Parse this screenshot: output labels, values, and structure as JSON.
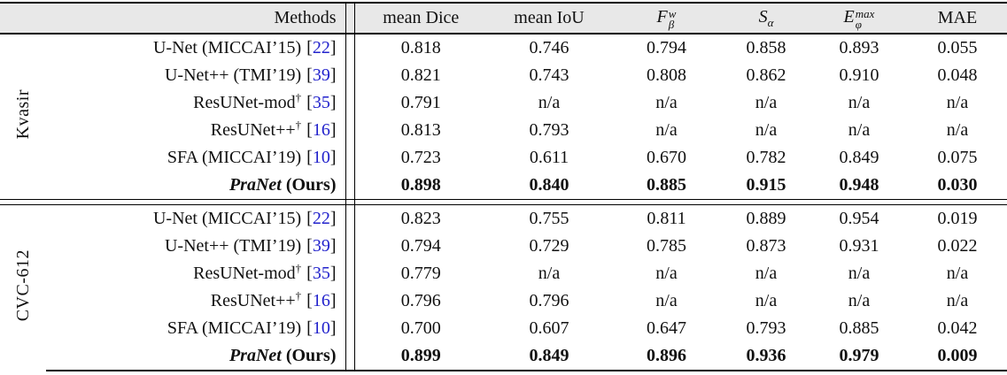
{
  "colors": {
    "citation_blue": "#2222cc",
    "header_bg": "#e8e8e8",
    "rule": "#000000"
  },
  "misc": {
    "bracket_open": "[",
    "bracket_close": "]"
  },
  "table": {
    "header": {
      "methods_label": "Methods",
      "columns": [
        {
          "label": "mean Dice"
        },
        {
          "label": "mean IoU"
        },
        {
          "base": "F",
          "sup": "w",
          "sub": "β"
        },
        {
          "base": "S",
          "sup": "",
          "sub": "α"
        },
        {
          "base": "E",
          "sup": "max",
          "sub": "φ"
        },
        {
          "label": "MAE"
        }
      ]
    },
    "groups": [
      {
        "dataset": "Kvasir",
        "rows": [
          {
            "method": "U-Net (MICCAI’15)",
            "dagger": "",
            "cite": "22",
            "values": [
              "0.818",
              "0.746",
              "0.794",
              "0.858",
              "0.893",
              "0.055"
            ]
          },
          {
            "method": "U-Net++ (TMI’19)",
            "dagger": "",
            "cite": "39",
            "values": [
              "0.821",
              "0.743",
              "0.808",
              "0.862",
              "0.910",
              "0.048"
            ]
          },
          {
            "method": "ResUNet-mod",
            "dagger": "†",
            "cite": "35",
            "values": [
              "0.791",
              "n/a",
              "n/a",
              "n/a",
              "n/a",
              "n/a"
            ]
          },
          {
            "method": "ResUNet++",
            "dagger": "†",
            "cite": "16",
            "values": [
              "0.813",
              "0.793",
              "n/a",
              "n/a",
              "n/a",
              "n/a"
            ]
          },
          {
            "method": "SFA (MICCAI’19)",
            "dagger": "",
            "cite": "10",
            "values": [
              "0.723",
              "0.611",
              "0.670",
              "0.782",
              "0.849",
              "0.075"
            ]
          },
          {
            "method_em": "PraNet",
            "method_bold": "(Ours)",
            "values": [
              "0.898",
              "0.840",
              "0.885",
              "0.915",
              "0.948",
              "0.030"
            ]
          }
        ]
      },
      {
        "dataset": "CVC-612",
        "rows": [
          {
            "method": "U-Net (MICCAI’15)",
            "dagger": "",
            "cite": "22",
            "values": [
              "0.823",
              "0.755",
              "0.811",
              "0.889",
              "0.954",
              "0.019"
            ]
          },
          {
            "method": "U-Net++ (TMI’19)",
            "dagger": "",
            "cite": "39",
            "values": [
              "0.794",
              "0.729",
              "0.785",
              "0.873",
              "0.931",
              "0.022"
            ]
          },
          {
            "method": "ResUNet-mod",
            "dagger": "†",
            "cite": "35",
            "values": [
              "0.779",
              "n/a",
              "n/a",
              "n/a",
              "n/a",
              "n/a"
            ]
          },
          {
            "method": "ResUNet++",
            "dagger": "†",
            "cite": "16",
            "values": [
              "0.796",
              "0.796",
              "n/a",
              "n/a",
              "n/a",
              "n/a"
            ]
          },
          {
            "method": "SFA (MICCAI’19)",
            "dagger": "",
            "cite": "10",
            "values": [
              "0.700",
              "0.607",
              "0.647",
              "0.793",
              "0.885",
              "0.042"
            ]
          },
          {
            "method_em": "PraNet",
            "method_bold": "(Ours)",
            "values": [
              "0.899",
              "0.849",
              "0.896",
              "0.936",
              "0.979",
              "0.009"
            ]
          }
        ]
      }
    ]
  }
}
